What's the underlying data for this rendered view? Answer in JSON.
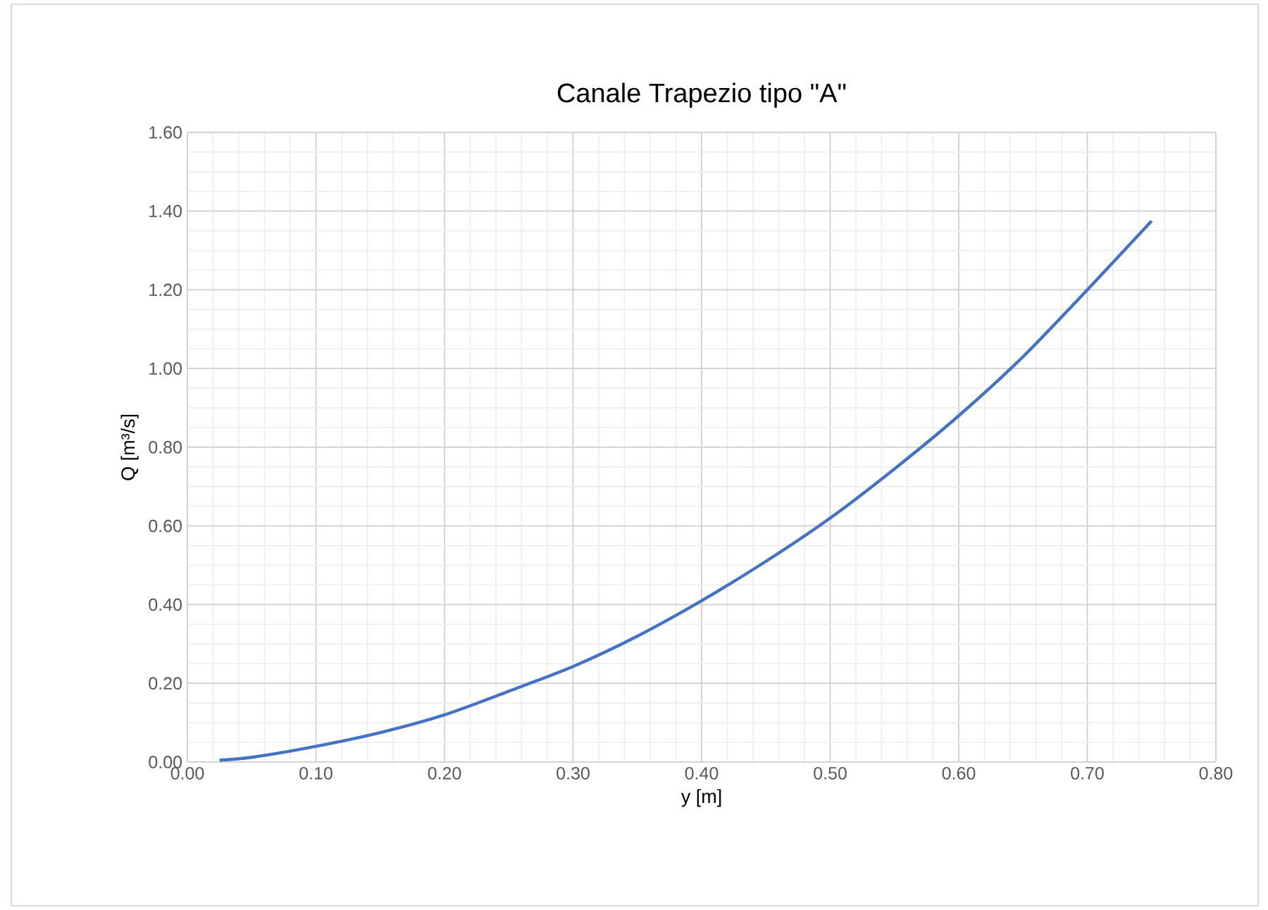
{
  "chart_data": {
    "type": "line",
    "title": "Canale Trapezio tipo \"A\"",
    "xlabel": "y [m]",
    "ylabel": "Q [m³/s]",
    "x": [
      0.025,
      0.05,
      0.1,
      0.15,
      0.2,
      0.25,
      0.3,
      0.35,
      0.4,
      0.45,
      0.5,
      0.55,
      0.6,
      0.65,
      0.7,
      0.75
    ],
    "series": [
      {
        "color": "#4472c4",
        "values": [
          0.005,
          0.012,
          0.04,
          0.075,
          0.12,
          0.18,
          0.243,
          0.32,
          0.41,
          0.51,
          0.62,
          0.745,
          0.88,
          1.03,
          1.2,
          1.375
        ]
      }
    ],
    "xlim": [
      0,
      0.8
    ],
    "ylim": [
      0,
      1.6
    ],
    "xticks": [
      {
        "value": 0,
        "label": "0.00"
      },
      {
        "value": 0.1,
        "label": "0.10"
      },
      {
        "value": 0.2,
        "label": "0.20"
      },
      {
        "value": 0.3,
        "label": "0.30"
      },
      {
        "value": 0.4,
        "label": "0.40"
      },
      {
        "value": 0.5,
        "label": "0.50"
      },
      {
        "value": 0.6,
        "label": "0.60"
      },
      {
        "value": 0.7,
        "label": "0.70"
      },
      {
        "value": 0.8,
        "label": "0.80"
      }
    ],
    "yticks": [
      {
        "value": 0,
        "label": "0.00"
      },
      {
        "value": 0.2,
        "label": "0.20"
      },
      {
        "value": 0.4,
        "label": "0.40"
      },
      {
        "value": 0.6,
        "label": "0.60"
      },
      {
        "value": 0.8,
        "label": "0.80"
      },
      {
        "value": 1.0,
        "label": "1.00"
      },
      {
        "value": 1.2,
        "label": "1.20"
      },
      {
        "value": 1.4,
        "label": "1.40"
      },
      {
        "value": 1.6,
        "label": "1.60"
      }
    ],
    "grid": true,
    "marker": "none",
    "line_style": "solid"
  }
}
